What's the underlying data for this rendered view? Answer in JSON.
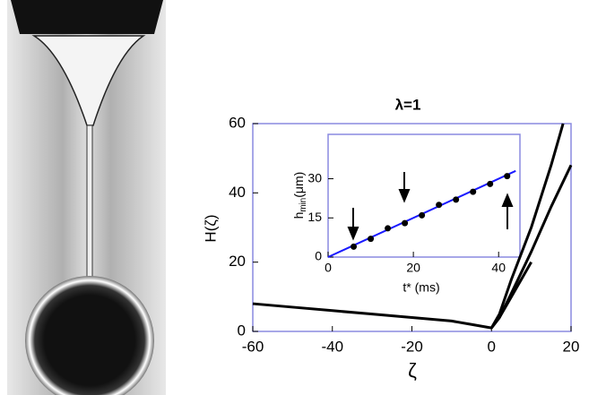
{
  "chart_data": [
    {
      "type": "line",
      "title": "λ=1",
      "x_label": "ζ",
      "y_label": "H(ζ)",
      "xlim": [
        -60,
        20
      ],
      "ylim": [
        0,
        60
      ],
      "xticks": [
        -60,
        -40,
        -20,
        0,
        20
      ],
      "yticks": [
        0,
        20,
        40,
        60
      ],
      "series": [
        {
          "color": "#000000",
          "style": "line",
          "x": [
            -60,
            -50,
            -40,
            -30,
            -20,
            -10,
            -5,
            0,
            2,
            5,
            10,
            15,
            18
          ],
          "values": [
            8,
            7,
            6,
            5,
            4,
            3,
            2,
            1,
            5,
            15,
            30,
            48,
            60
          ]
        },
        {
          "color": "#000000",
          "style": "line",
          "x": [
            0,
            2,
            5,
            10,
            15,
            20
          ],
          "values": [
            1,
            4,
            11,
            23,
            36,
            48
          ]
        },
        {
          "color": "#000000",
          "style": "line",
          "x": [
            0,
            2,
            5,
            10
          ],
          "values": [
            1,
            4,
            10,
            20
          ]
        }
      ]
    },
    {
      "type": "scatter",
      "x_label": "t* (ms)",
      "y_label": {
        "base": "h",
        "sub": "min",
        "unit": "(μm)"
      },
      "xlim": [
        0,
        45
      ],
      "ylim": [
        0,
        47
      ],
      "xticks": [
        0,
        20,
        40
      ],
      "yticks": [
        0,
        15,
        30
      ],
      "series": [
        {
          "color": "#1a1aff",
          "style": "line",
          "x": [
            0,
            44
          ],
          "values": [
            0,
            33
          ]
        },
        {
          "color": "#000000",
          "style": "markers",
          "x": [
            6,
            10,
            14,
            18,
            22,
            26,
            30,
            34,
            38,
            42
          ],
          "values": [
            4,
            7,
            11,
            13,
            16,
            20,
            22,
            25,
            28,
            31
          ]
        }
      ]
    }
  ]
}
